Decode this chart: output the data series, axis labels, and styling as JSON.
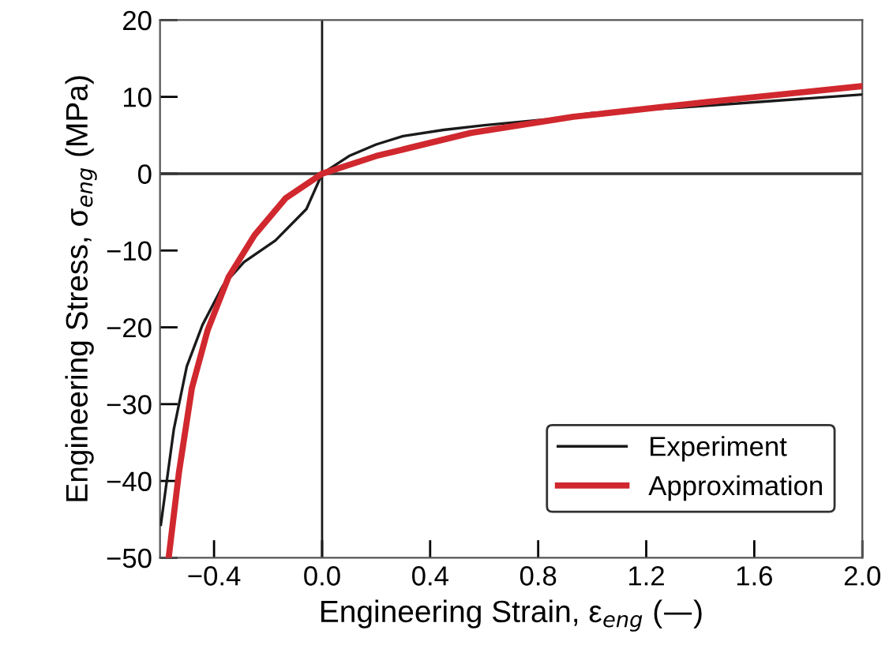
{
  "chart_data": {
    "type": "line",
    "xlabel": "Engineering Strain, ε$_{eng}$ (—)",
    "ylabel": "Engineering Stress, σ$_{eng}$ (MPa)",
    "series": [
      {
        "name": "Experiment",
        "color": "#1a1a1a",
        "x": [
          -0.597,
          -0.549,
          -0.501,
          -0.443,
          -0.366,
          -0.289,
          -0.173,
          -0.058,
          0,
          0.1,
          0.2,
          0.3,
          0.45,
          0.6,
          0.84,
          1.0,
          1.32,
          1.6,
          1.8,
          2.0
        ],
        "values": [
          -45.7,
          -33.3,
          -25.1,
          -19.7,
          -14.5,
          -11.5,
          -8.7,
          -4.6,
          0,
          2.3,
          3.8,
          4.9,
          5.7,
          6.3,
          7.1,
          7.9,
          8.6,
          9.3,
          9.8,
          10.3
        ]
      },
      {
        "name": "Approximation",
        "color": "#d0282e",
        "x": [
          -0.568,
          -0.53,
          -0.482,
          -0.424,
          -0.347,
          -0.25,
          -0.135,
          0,
          0.2,
          0.55,
          0.93,
          1.42,
          2.0
        ],
        "values": [
          -50,
          -38.9,
          -27.9,
          -20.4,
          -13.5,
          -8,
          -3.2,
          0,
          2.3,
          5.3,
          7.4,
          9.3,
          11.4
        ]
      }
    ],
    "xlim": [
      -0.6,
      2.0
    ],
    "ylim": [
      -50,
      20
    ],
    "xticks": [
      {
        "value": -0.4,
        "label": "−0.4"
      },
      {
        "value": 0,
        "label": "0.0"
      },
      0.4,
      0.8,
      1.2,
      1.6,
      {
        "value": 2,
        "label": "2.0"
      }
    ],
    "yticks": [
      {
        "value": -50,
        "label": "−50"
      },
      {
        "value": -40,
        "label": "−40"
      },
      {
        "value": -30,
        "label": "−30"
      },
      {
        "value": -20,
        "label": "−20"
      },
      {
        "value": -10,
        "label": "−10"
      },
      0,
      10,
      20
    ],
    "ref_lines": [
      {
        "axis": "x",
        "value": 0,
        "color": "#1a1a1a"
      },
      {
        "axis": "y",
        "value": 0,
        "color": "#333333"
      }
    ],
    "grid": false,
    "legend": "bottom right",
    "marker": "none",
    "line_style": "solid"
  }
}
